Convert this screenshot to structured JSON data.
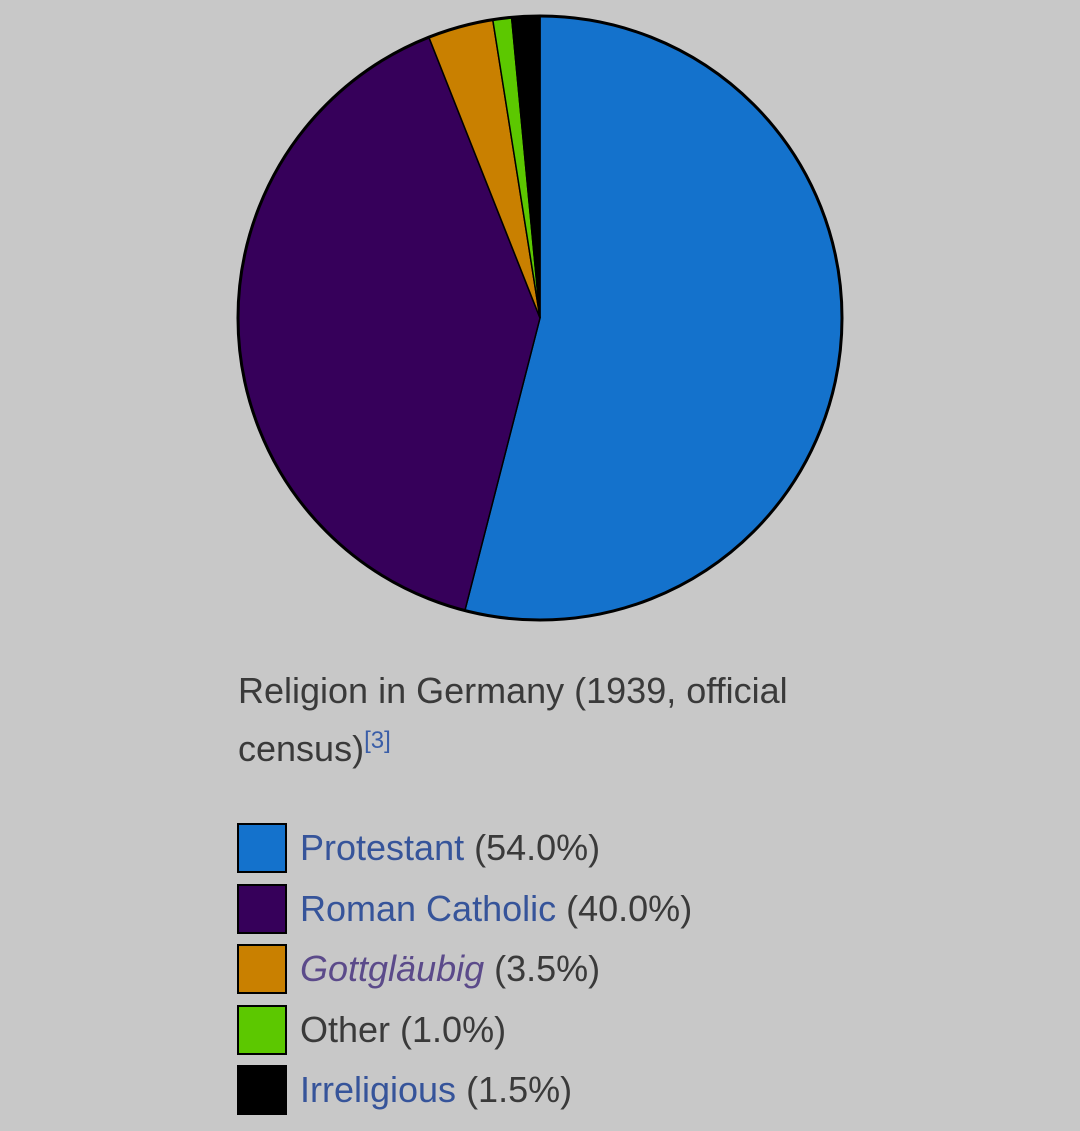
{
  "caption": {
    "text": "Religion in Germany (1939, official census)",
    "ref": "[3]"
  },
  "chart_data": {
    "type": "pie",
    "title": "",
    "slices": [
      {
        "label": "Protestant",
        "value": 54.0,
        "percent_label": "(54.0%)",
        "color": "#1472cc"
      },
      {
        "label": "Roman Catholic",
        "value": 40.0,
        "percent_label": "(40.0%)",
        "color": "#36005a"
      },
      {
        "label": "Gottgläubig",
        "value": 3.5,
        "percent_label": "(3.5%)",
        "color": "#c98000"
      },
      {
        "label": "Other",
        "value": 1.0,
        "percent_label": "(1.0%)",
        "color": "#5cc800"
      },
      {
        "label": "Irreligious",
        "value": 1.5,
        "percent_label": "(1.5%)",
        "color": "#000000"
      }
    ],
    "start": "top",
    "direction": "clockwise"
  }
}
